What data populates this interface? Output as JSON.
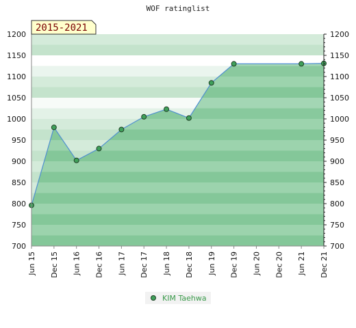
{
  "chart_data": {
    "type": "area",
    "title": "WOF ratinglist",
    "badge": "2015-2021",
    "ylim": [
      700,
      1200
    ],
    "y_ticks": [
      700,
      750,
      800,
      850,
      900,
      950,
      1000,
      1050,
      1100,
      1150,
      1200
    ],
    "x_categories": [
      "Jun 15",
      "Dec 15",
      "Jun 16",
      "Dec 16",
      "Jun 17",
      "Dec 17",
      "Jun 18",
      "Dec 18",
      "Jun 19",
      "Dec 19",
      "Jun 20",
      "Dec 20",
      "Jun 21",
      "Dec 21"
    ],
    "series": [
      {
        "name": "KIM Taehwa",
        "points": [
          {
            "x": "Jun 15",
            "y": 796
          },
          {
            "x": "Dec 15",
            "y": 980
          },
          {
            "x": "Jun 16",
            "y": 902
          },
          {
            "x": "Dec 16",
            "y": 930
          },
          {
            "x": "Jun 17",
            "y": 975
          },
          {
            "x": "Dec 17",
            "y": 1005
          },
          {
            "x": "Jun 18",
            "y": 1023
          },
          {
            "x": "Dec 18",
            "y": 1002
          },
          {
            "x": "Jun 19",
            "y": 1085
          },
          {
            "x": "Dec 19",
            "y": 1130
          },
          {
            "x": "Jun 21",
            "y": 1130
          },
          {
            "x": "Dec 21",
            "y": 1131
          }
        ]
      }
    ],
    "colors": {
      "line": "#4f8fd0",
      "marker_fill": "#3fa05a",
      "marker_stroke": "#1f3f25",
      "legend_text": "#3a9a4a",
      "badge_bg": "#ffffcc",
      "badge_text": "#7a0000"
    },
    "grid": true,
    "legend_position": "bottom-center"
  }
}
